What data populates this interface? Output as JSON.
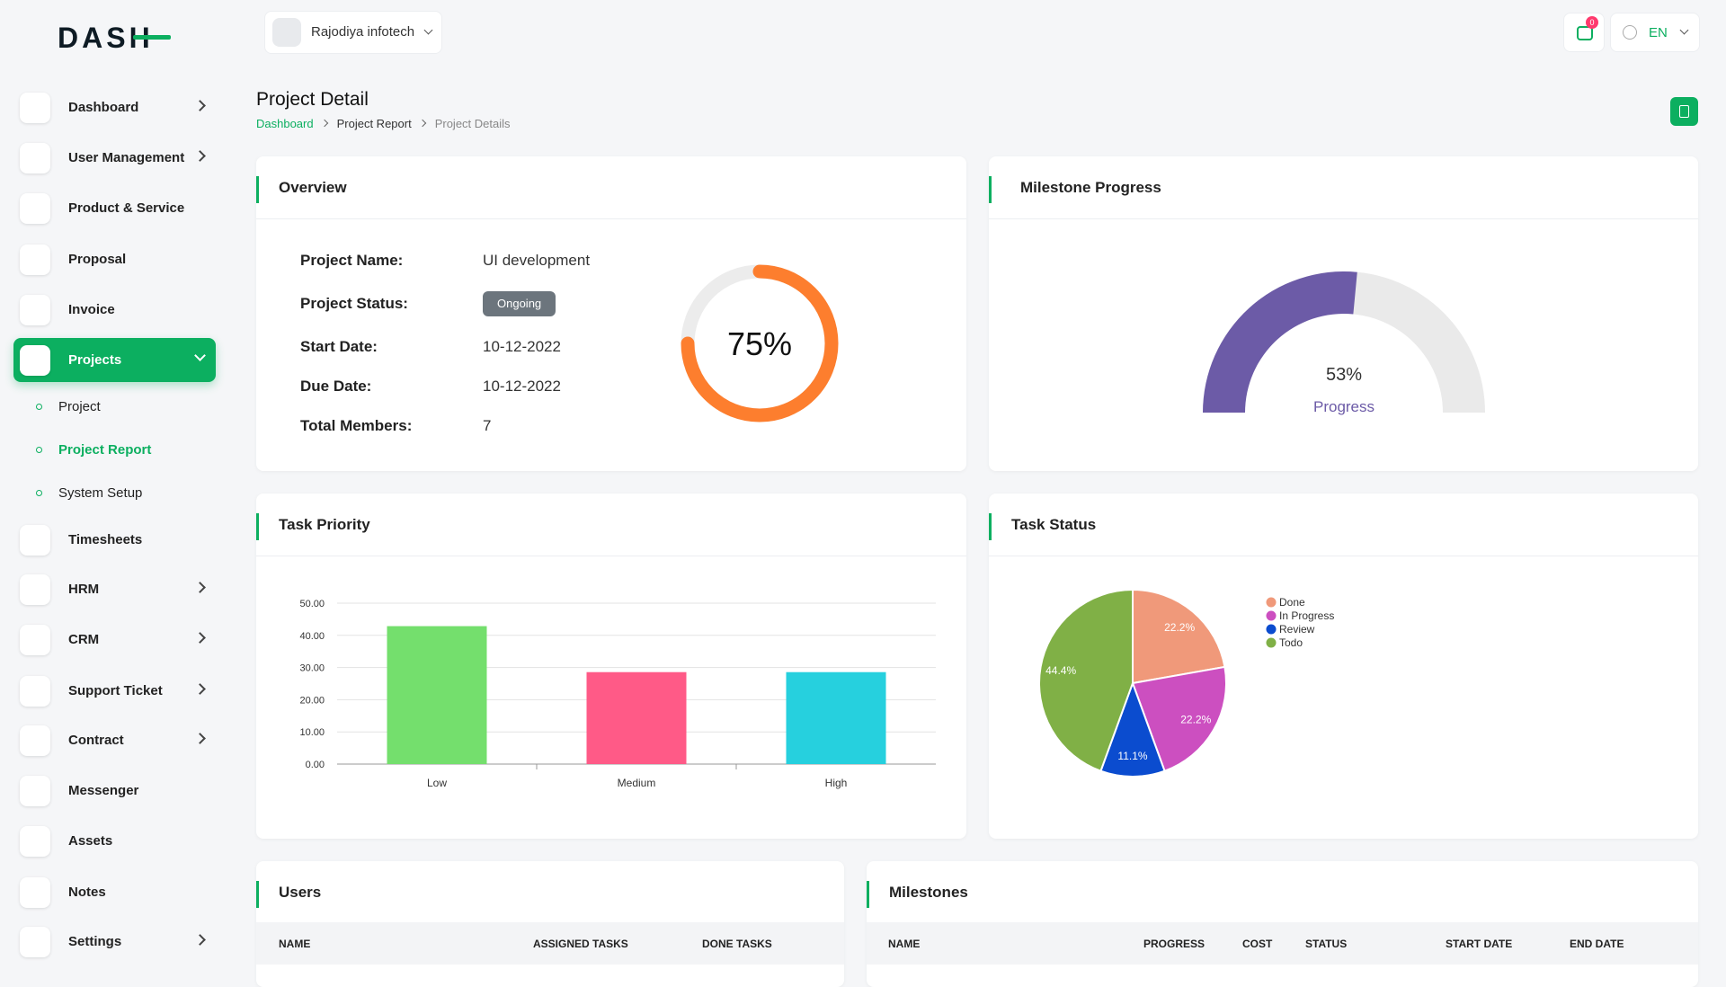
{
  "brand": "DASH",
  "sidebar": {
    "items": [
      {
        "label": "Dashboard",
        "expandable": true
      },
      {
        "label": "User Management",
        "expandable": true
      },
      {
        "label": "Product & Service",
        "expandable": false
      },
      {
        "label": "Proposal",
        "expandable": false
      },
      {
        "label": "Invoice",
        "expandable": false
      },
      {
        "label": "Projects",
        "expandable": true,
        "active": true,
        "children": [
          {
            "label": "Project"
          },
          {
            "label": "Project Report",
            "active": true
          },
          {
            "label": "System Setup"
          }
        ]
      },
      {
        "label": "Timesheets",
        "expandable": false
      },
      {
        "label": "HRM",
        "expandable": true
      },
      {
        "label": "CRM",
        "expandable": true
      },
      {
        "label": "Support Ticket",
        "expandable": true
      },
      {
        "label": "Contract",
        "expandable": true
      },
      {
        "label": "Messenger",
        "expandable": false
      },
      {
        "label": "Assets",
        "expandable": false
      },
      {
        "label": "Notes",
        "expandable": false
      },
      {
        "label": "Settings",
        "expandable": true
      }
    ]
  },
  "header": {
    "user": "Rajodiya infotech",
    "notifications": 0,
    "language": "EN"
  },
  "page": {
    "title": "Project Detail",
    "breadcrumb": [
      "Dashboard",
      "Project Report",
      "Project Details"
    ]
  },
  "overview": {
    "title": "Overview",
    "fields": [
      {
        "label": "Project Name:",
        "value": "UI development"
      },
      {
        "label": "Project Status:",
        "value": "Ongoing"
      },
      {
        "label": "Start Date:",
        "value": "10-12-2022"
      },
      {
        "label": "Due Date:",
        "value": "10-12-2022"
      },
      {
        "label": "Total Members:",
        "value": 7
      }
    ]
  },
  "chart_data": [
    {
      "type": "donut",
      "values": [
        75
      ],
      "value_labels": [
        "75%"
      ],
      "color": "#fd7e2e"
    },
    {
      "type": "gauge",
      "title": "Milestone Progress",
      "values": [
        53
      ],
      "value_labels": [
        "53%"
      ],
      "label": "Progress",
      "color": "#6c5ba7"
    },
    {
      "type": "bar",
      "title": "Task Priority",
      "categories": [
        "Low",
        "Medium",
        "High"
      ],
      "values": [
        42.86,
        28.57,
        28.57
      ],
      "colors": [
        "#74df6d",
        "#ff5a87",
        "#26d0de"
      ],
      "ylim": [
        0,
        50
      ],
      "yticks": [
        {
          "value": 0,
          "label": "0.00"
        },
        {
          "value": 10,
          "label": "10.00"
        },
        {
          "value": 20,
          "label": "20.00"
        },
        {
          "value": 30,
          "label": "30.00"
        },
        {
          "value": 40,
          "label": "40.00"
        },
        {
          "value": 50,
          "label": "50.00"
        }
      ],
      "grid": true
    },
    {
      "type": "pie",
      "title": "Task Status",
      "categories": [
        "Done",
        "In Progress",
        "Review",
        "Todo"
      ],
      "values": [
        22.2,
        22.2,
        11.1,
        44.4
      ],
      "value_labels": [
        "22.2%",
        "22.2%",
        "11.1%",
        "44.4%"
      ],
      "colors": [
        "#f0997a",
        "#cc4fc0",
        "#0b4ccf",
        "#80b046"
      ],
      "legend": "top-right"
    }
  ],
  "tables": {
    "users": {
      "title": "Users",
      "columns": [
        "NAME",
        "ASSIGNED TASKS",
        "DONE TASKS"
      ]
    },
    "milestones": {
      "title": "Milestones",
      "columns": [
        "NAME",
        "PROGRESS",
        "COST",
        "STATUS",
        "START DATE",
        "END DATE"
      ]
    }
  }
}
